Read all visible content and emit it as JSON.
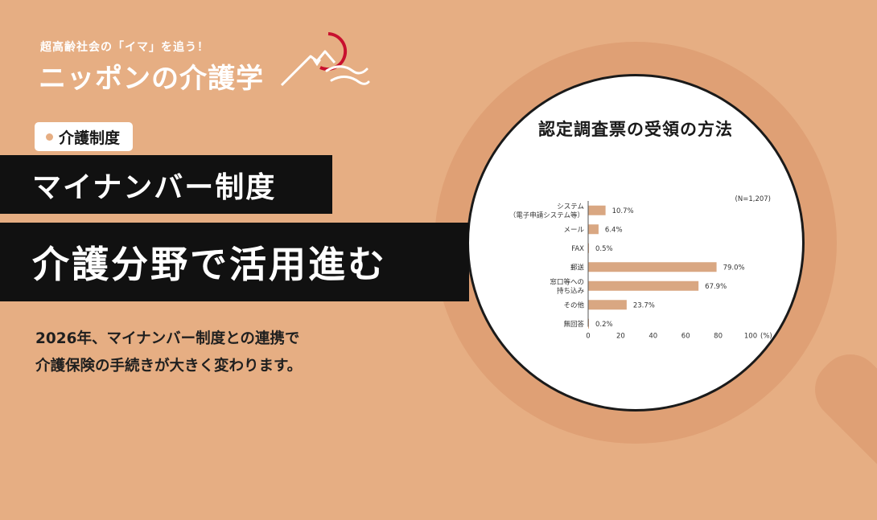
{
  "brand": {
    "tagline": "超高齢社会の「イマ」を追う！",
    "title": "ニッポンの介護学"
  },
  "category": "介護制度",
  "headline": {
    "line1": "マイナンバー制度",
    "line2": "介護分野で活用進む"
  },
  "description": [
    "2026年、マイナンバー制度との連携で",
    "介護保険の手続きが大きく変わります。"
  ],
  "colors": {
    "background": "#E6AE83",
    "magnifier": "#DFA075",
    "bar": "#D9A782",
    "headline_bg": "#111111",
    "logo_red": "#C8102E"
  },
  "icons": {
    "logo": "mount-fuji-sunrise-icon",
    "bullet": "dot-icon"
  },
  "chart_data": {
    "type": "bar",
    "orientation": "horizontal",
    "title": "認定調査票の受領の方法",
    "note": "(N=1,207)",
    "categories": [
      [
        "システム",
        "（電子申請システム等）"
      ],
      [
        "メール"
      ],
      [
        "FAX"
      ],
      [
        "郵送"
      ],
      [
        "窓口等への",
        "持ち込み"
      ],
      [
        "その他"
      ],
      [
        "無回答"
      ]
    ],
    "values": [
      10.7,
      6.4,
      0.5,
      79.0,
      67.9,
      23.7,
      0.2
    ],
    "value_labels": [
      "10.7%",
      "6.4%",
      "0.5%",
      "79.0%",
      "67.9%",
      "23.7%",
      "0.2%"
    ],
    "x_ticks": [
      "0",
      "20",
      "40",
      "60",
      "80",
      "100"
    ],
    "x_unit": "(%)",
    "xlim": [
      0,
      100
    ],
    "grid": false
  }
}
